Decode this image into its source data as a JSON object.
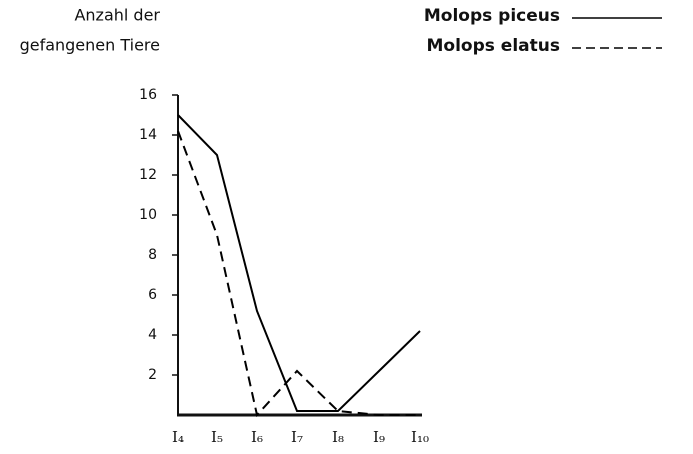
{
  "chart_data": {
    "type": "line",
    "y_label": [
      "Anzahl der",
      "gefangenen Tiere"
    ],
    "categories": [
      "I₄",
      "I₅",
      "I₆",
      "I₇",
      "I₈",
      "I₉",
      "I₁₀"
    ],
    "series": [
      {
        "name": "Molops piceus",
        "color": "#000000",
        "dash": "solid",
        "values": [
          15,
          13,
          5.2,
          0.2,
          0.2,
          2.2,
          4.2
        ]
      },
      {
        "name": "Molops elatus",
        "color": "#000000",
        "dash": "dashed",
        "values": [
          14.2,
          9,
          0,
          2.2,
          0.2,
          0,
          0
        ]
      }
    ],
    "ylim": [
      0,
      16
    ],
    "yticks": [
      2,
      4,
      6,
      8,
      10,
      12,
      14,
      16
    ],
    "grid": false,
    "legend": "top-right"
  }
}
